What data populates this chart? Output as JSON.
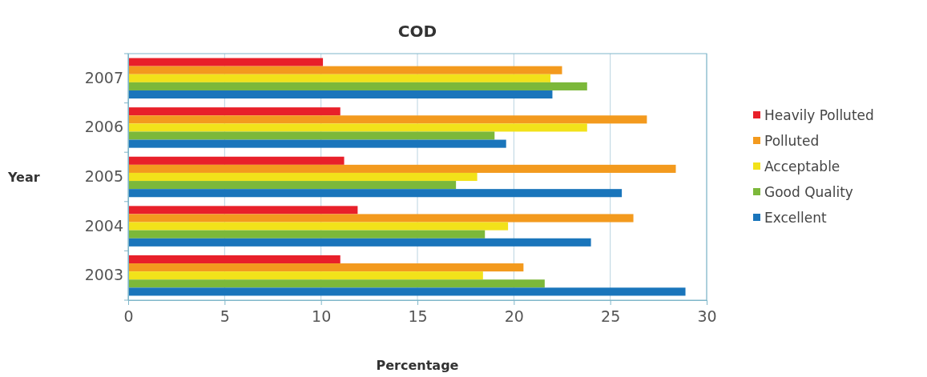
{
  "chart_data": {
    "type": "bar",
    "orientation": "horizontal",
    "title": "COD",
    "xlabel": "Percentage",
    "ylabel": "Year",
    "categories": [
      "2007",
      "2006",
      "2005",
      "2004",
      "2003"
    ],
    "series": [
      {
        "name": "Heavily Polluted",
        "color": "#e8202a",
        "values": [
          10.1,
          11.0,
          11.2,
          11.9,
          11.0
        ]
      },
      {
        "name": "Polluted",
        "color": "#f39a1e",
        "values": [
          22.5,
          26.9,
          28.4,
          26.2,
          20.5
        ]
      },
      {
        "name": "Acceptable",
        "color": "#f2e21a",
        "values": [
          21.9,
          23.8,
          18.1,
          19.7,
          18.4
        ]
      },
      {
        "name": "Good Quality",
        "color": "#7cb83a",
        "values": [
          23.8,
          19.0,
          17.0,
          18.5,
          21.6
        ]
      },
      {
        "name": "Excellent",
        "color": "#1a75bb",
        "values": [
          22.0,
          19.6,
          25.6,
          24.0,
          28.9
        ]
      }
    ],
    "xlim": [
      0,
      30
    ],
    "xticks": [
      0,
      5,
      10,
      15,
      20,
      25,
      30
    ],
    "grid": "x",
    "legend": "right"
  }
}
